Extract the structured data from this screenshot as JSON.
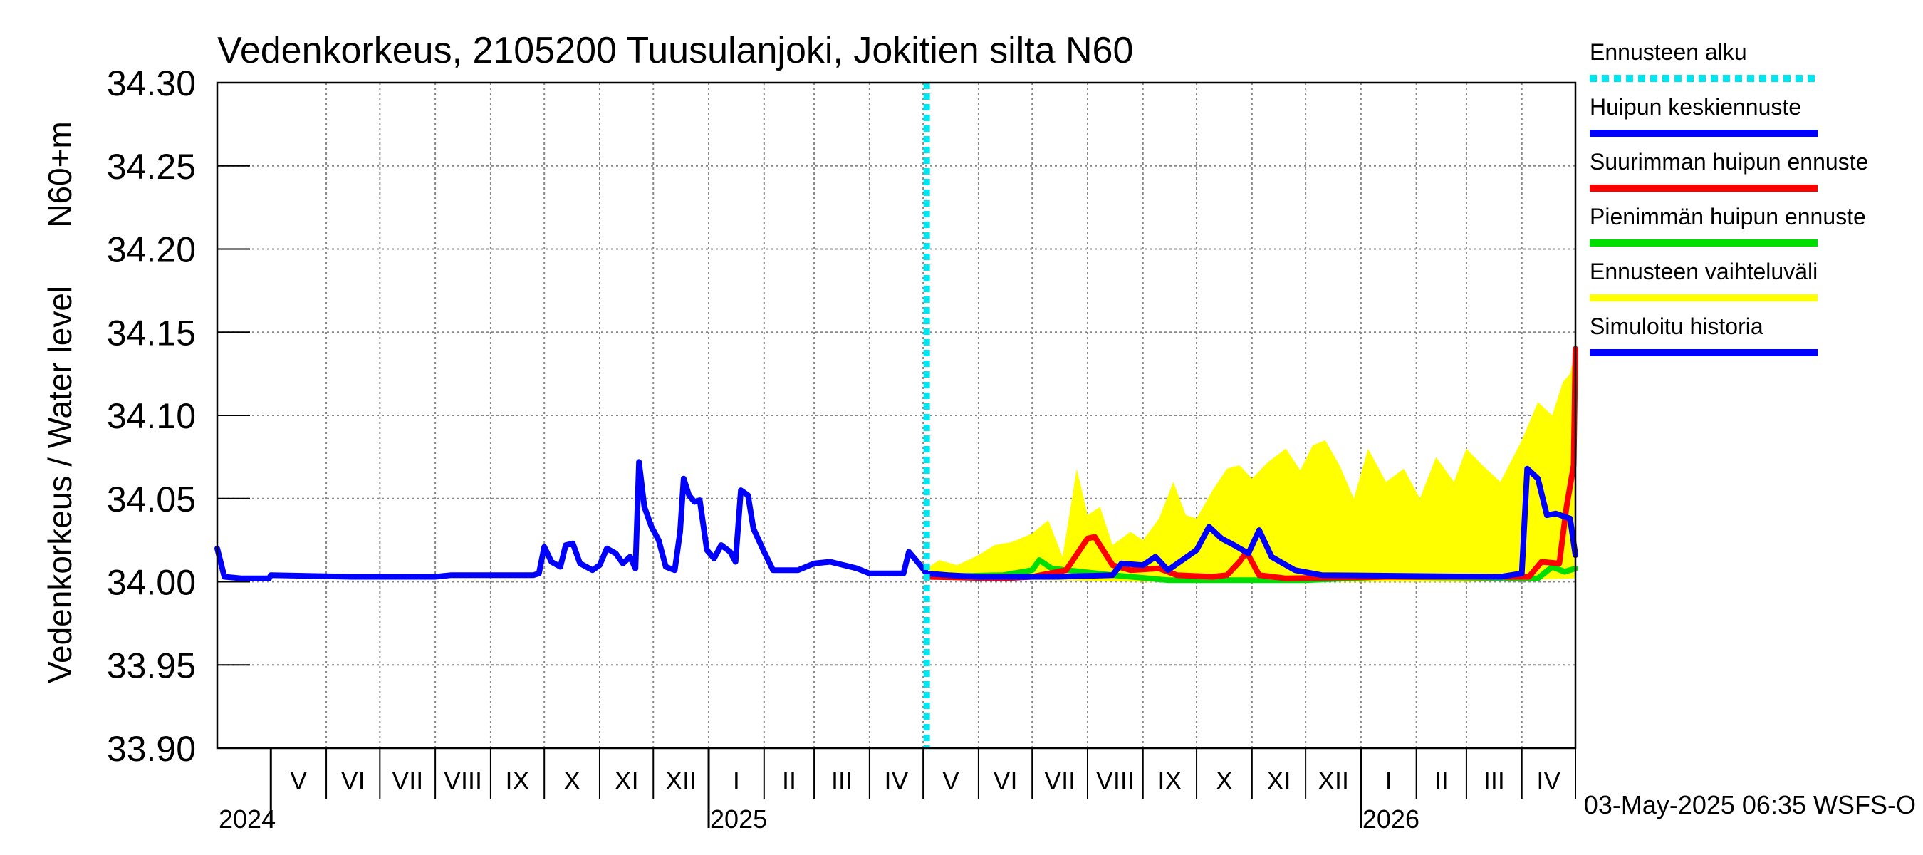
{
  "chart_data": {
    "type": "line",
    "title": "Vedenkorkeus, 2105200 Tuusulanjoki, Jokitien silta N60",
    "ylabel": "Vedenkorkeus / Water level",
    "yunit": "N60+m",
    "ylim": [
      33.9,
      34.3
    ],
    "yticks": [
      "34.30",
      "34.25",
      "34.20",
      "34.15",
      "34.10",
      "34.05",
      "34.00",
      "33.95",
      "33.90"
    ],
    "xlim": [
      "2024-04-01",
      "2026-05-01"
    ],
    "grid": true,
    "legend_position": "right",
    "forecast_start": "2025-05-03",
    "timestamp": "03-May-2025 06:35 WSFS-O",
    "months": [
      {
        "label": "V",
        "start": "2024-05-01"
      },
      {
        "label": "VI",
        "start": "2024-06-01"
      },
      {
        "label": "VII",
        "start": "2024-07-01"
      },
      {
        "label": "VIII",
        "start": "2024-08-01"
      },
      {
        "label": "IX",
        "start": "2024-09-01"
      },
      {
        "label": "X",
        "start": "2024-10-01"
      },
      {
        "label": "XI",
        "start": "2024-11-01"
      },
      {
        "label": "XII",
        "start": "2024-12-01"
      },
      {
        "label": "I",
        "start": "2025-01-01"
      },
      {
        "label": "II",
        "start": "2025-02-01"
      },
      {
        "label": "III",
        "start": "2025-03-01"
      },
      {
        "label": "IV",
        "start": "2025-04-01"
      },
      {
        "label": "V",
        "start": "2025-05-01"
      },
      {
        "label": "VI",
        "start": "2025-06-01"
      },
      {
        "label": "VII",
        "start": "2025-07-01"
      },
      {
        "label": "VIII",
        "start": "2025-08-01"
      },
      {
        "label": "IX",
        "start": "2025-09-01"
      },
      {
        "label": "X",
        "start": "2025-10-01"
      },
      {
        "label": "XI",
        "start": "2025-11-01"
      },
      {
        "label": "XII",
        "start": "2025-12-01"
      },
      {
        "label": "I",
        "start": "2026-01-01"
      },
      {
        "label": "II",
        "start": "2026-02-01"
      },
      {
        "label": "III",
        "start": "2026-03-01"
      },
      {
        "label": "IV",
        "start": "2026-04-01"
      }
    ],
    "years": [
      {
        "label": "2024",
        "start": "2024-05-01"
      },
      {
        "label": "2025",
        "start": "2025-01-01"
      },
      {
        "label": "2026",
        "start": "2026-01-01"
      }
    ],
    "legend": [
      {
        "label": "Ennusteen alku",
        "color": "#00e5ee",
        "style": "dotted"
      },
      {
        "label": "Huipun keskiennuste",
        "color": "#0000ff",
        "style": "solid"
      },
      {
        "label": "Suurimman huipun ennuste",
        "color": "#ff0000",
        "style": "solid"
      },
      {
        "label": "Pienimmän huipun ennuste",
        "color": "#00dd00",
        "style": "solid"
      },
      {
        "label": "Ennusteen vaihteluväli",
        "color": "#ffff00",
        "style": "solid"
      },
      {
        "label": "Simuloitu historia",
        "color": "#0000ff",
        "style": "solid"
      }
    ],
    "series": [
      {
        "name": "Simuloitu historia",
        "color": "#0000ff",
        "points": [
          [
            "2024-04-01",
            34.02
          ],
          [
            "2024-04-05",
            34.003
          ],
          [
            "2024-04-15",
            34.002
          ],
          [
            "2024-04-30",
            34.002
          ],
          [
            "2024-05-01",
            34.004
          ],
          [
            "2024-06-15",
            34.003
          ],
          [
            "2024-08-01",
            34.003
          ],
          [
            "2024-08-10",
            34.004
          ],
          [
            "2024-09-15",
            34.004
          ],
          [
            "2024-09-25",
            34.004
          ],
          [
            "2024-09-28",
            34.005
          ],
          [
            "2024-10-01",
            34.021
          ],
          [
            "2024-10-05",
            34.012
          ],
          [
            "2024-10-10",
            34.009
          ],
          [
            "2024-10-13",
            34.022
          ],
          [
            "2024-10-17",
            34.023
          ],
          [
            "2024-10-21",
            34.011
          ],
          [
            "2024-10-28",
            34.007
          ],
          [
            "2024-11-01",
            34.01
          ],
          [
            "2024-11-05",
            34.02
          ],
          [
            "2024-11-10",
            34.017
          ],
          [
            "2024-11-14",
            34.011
          ],
          [
            "2024-11-18",
            34.015
          ],
          [
            "2024-11-21",
            34.008
          ],
          [
            "2024-11-23",
            34.072
          ],
          [
            "2024-11-26",
            34.045
          ],
          [
            "2024-11-30",
            34.033
          ],
          [
            "2024-12-04",
            34.025
          ],
          [
            "2024-12-08",
            34.009
          ],
          [
            "2024-12-13",
            34.007
          ],
          [
            "2024-12-16",
            34.03
          ],
          [
            "2024-12-18",
            34.062
          ],
          [
            "2024-12-21",
            34.052
          ],
          [
            "2024-12-24",
            34.048
          ],
          [
            "2024-12-27",
            34.049
          ],
          [
            "2024-12-31",
            34.019
          ],
          [
            "2025-01-04",
            34.014
          ],
          [
            "2025-01-08",
            34.022
          ],
          [
            "2025-01-13",
            34.018
          ],
          [
            "2025-01-16",
            34.012
          ],
          [
            "2025-01-19",
            34.055
          ],
          [
            "2025-01-23",
            34.052
          ],
          [
            "2025-01-26",
            34.032
          ],
          [
            "2025-02-01",
            34.018
          ],
          [
            "2025-02-06",
            34.007
          ],
          [
            "2025-02-20",
            34.007
          ],
          [
            "2025-03-01",
            34.011
          ],
          [
            "2025-03-10",
            34.012
          ],
          [
            "2025-03-25",
            34.008
          ],
          [
            "2025-04-01",
            34.005
          ],
          [
            "2025-04-20",
            34.005
          ],
          [
            "2025-04-23",
            34.018
          ],
          [
            "2025-04-27",
            34.013
          ],
          [
            "2025-05-03",
            34.005
          ]
        ]
      },
      {
        "name": "Ennusteen vaihteluväli (yläraja)",
        "color": "#ffff00",
        "points": [
          [
            "2025-05-03",
            34.008
          ],
          [
            "2025-05-10",
            34.013
          ],
          [
            "2025-05-20",
            34.01
          ],
          [
            "2025-06-01",
            34.016
          ],
          [
            "2025-06-10",
            34.022
          ],
          [
            "2025-06-20",
            34.024
          ],
          [
            "2025-07-01",
            34.029
          ],
          [
            "2025-07-10",
            34.037
          ],
          [
            "2025-07-18",
            34.015
          ],
          [
            "2025-07-26",
            34.068
          ],
          [
            "2025-08-01",
            34.04
          ],
          [
            "2025-08-08",
            34.045
          ],
          [
            "2025-08-15",
            34.022
          ],
          [
            "2025-08-25",
            34.03
          ],
          [
            "2025-09-01",
            34.025
          ],
          [
            "2025-09-10",
            34.038
          ],
          [
            "2025-09-18",
            34.06
          ],
          [
            "2025-09-25",
            34.04
          ],
          [
            "2025-10-01",
            34.038
          ],
          [
            "2025-10-10",
            34.055
          ],
          [
            "2025-10-18",
            34.068
          ],
          [
            "2025-10-25",
            34.07
          ],
          [
            "2025-11-01",
            34.062
          ],
          [
            "2025-11-10",
            34.072
          ],
          [
            "2025-11-20",
            34.08
          ],
          [
            "2025-11-28",
            34.067
          ],
          [
            "2025-12-05",
            34.082
          ],
          [
            "2025-12-12",
            34.085
          ],
          [
            "2025-12-20",
            34.07
          ],
          [
            "2025-12-28",
            34.05
          ],
          [
            "2026-01-05",
            34.08
          ],
          [
            "2026-01-15",
            34.06
          ],
          [
            "2026-01-25",
            34.068
          ],
          [
            "2026-02-03",
            34.05
          ],
          [
            "2026-02-12",
            34.075
          ],
          [
            "2026-02-22",
            34.06
          ],
          [
            "2026-03-01",
            34.08
          ],
          [
            "2026-03-10",
            34.07
          ],
          [
            "2026-03-20",
            34.06
          ],
          [
            "2026-04-01",
            34.085
          ],
          [
            "2026-04-10",
            34.108
          ],
          [
            "2026-04-18",
            34.1
          ],
          [
            "2026-04-24",
            34.12
          ],
          [
            "2026-04-28",
            34.125
          ],
          [
            "2026-05-01",
            34.14
          ]
        ]
      },
      {
        "name": "Ennusteen vaihteluväli (alaraja)",
        "color": "#ffff00",
        "points": [
          [
            "2025-05-03",
            34.002
          ],
          [
            "2025-09-01",
            34.0
          ],
          [
            "2026-03-01",
            34.0
          ],
          [
            "2026-05-01",
            34.002
          ]
        ]
      },
      {
        "name": "Pienimmän huipun ennuste",
        "color": "#00dd00",
        "points": [
          [
            "2025-05-03",
            34.003
          ],
          [
            "2025-06-15",
            34.004
          ],
          [
            "2025-07-01",
            34.007
          ],
          [
            "2025-07-05",
            34.013
          ],
          [
            "2025-07-12",
            34.008
          ],
          [
            "2025-08-15",
            34.004
          ],
          [
            "2025-09-15",
            34.001
          ],
          [
            "2025-12-01",
            34.001
          ],
          [
            "2026-01-15",
            34.003
          ],
          [
            "2026-04-10",
            34.002
          ],
          [
            "2026-04-18",
            34.009
          ],
          [
            "2026-04-25",
            34.006
          ],
          [
            "2026-05-01",
            34.008
          ]
        ]
      },
      {
        "name": "Suurimman huipun ennuste",
        "color": "#ff0000",
        "points": [
          [
            "2025-05-03",
            34.003
          ],
          [
            "2025-06-15",
            34.002
          ],
          [
            "2025-07-01",
            34.003
          ],
          [
            "2025-07-20",
            34.007
          ],
          [
            "2025-08-01",
            34.026
          ],
          [
            "2025-08-05",
            34.027
          ],
          [
            "2025-08-15",
            34.01
          ],
          [
            "2025-08-25",
            34.007
          ],
          [
            "2025-09-10",
            34.008
          ],
          [
            "2025-09-20",
            34.004
          ],
          [
            "2025-10-10",
            34.003
          ],
          [
            "2025-10-18",
            34.004
          ],
          [
            "2025-10-25",
            34.012
          ],
          [
            "2025-10-29",
            34.018
          ],
          [
            "2025-11-05",
            34.004
          ],
          [
            "2025-11-20",
            34.002
          ],
          [
            "2026-01-15",
            34.003
          ],
          [
            "2026-03-20",
            34.003
          ],
          [
            "2026-04-05",
            34.003
          ],
          [
            "2026-04-12",
            34.012
          ],
          [
            "2026-04-22",
            34.011
          ],
          [
            "2026-04-26",
            34.045
          ],
          [
            "2026-04-30",
            34.07
          ],
          [
            "2026-05-01",
            34.14
          ]
        ]
      },
      {
        "name": "Huipun keskiennuste",
        "color": "#0000ff",
        "points": [
          [
            "2025-05-03",
            34.005
          ],
          [
            "2025-05-15",
            34.004
          ],
          [
            "2025-06-01",
            34.003
          ],
          [
            "2025-07-15",
            34.003
          ],
          [
            "2025-08-15",
            34.004
          ],
          [
            "2025-08-20",
            34.011
          ],
          [
            "2025-09-01",
            34.01
          ],
          [
            "2025-09-08",
            34.015
          ],
          [
            "2025-09-15",
            34.007
          ],
          [
            "2025-10-01",
            34.019
          ],
          [
            "2025-10-08",
            34.033
          ],
          [
            "2025-10-15",
            34.026
          ],
          [
            "2025-10-22",
            34.022
          ],
          [
            "2025-10-30",
            34.017
          ],
          [
            "2025-11-05",
            34.031
          ],
          [
            "2025-11-12",
            34.015
          ],
          [
            "2025-11-25",
            34.007
          ],
          [
            "2025-12-10",
            34.004
          ],
          [
            "2026-03-20",
            34.003
          ],
          [
            "2026-04-01",
            34.005
          ],
          [
            "2026-04-04",
            34.068
          ],
          [
            "2026-04-10",
            34.062
          ],
          [
            "2026-04-15",
            34.04
          ],
          [
            "2026-04-20",
            34.041
          ],
          [
            "2026-04-28",
            34.038
          ],
          [
            "2026-05-01",
            34.016
          ]
        ]
      }
    ]
  }
}
